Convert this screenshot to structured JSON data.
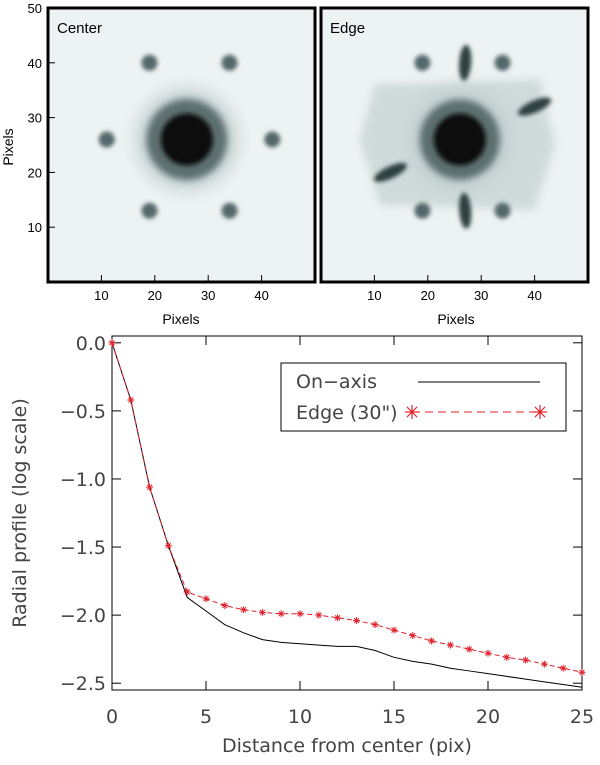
{
  "chart_data": [
    {
      "type": "heatmap",
      "title": "Center",
      "xlabel": "Pixels",
      "ylabel": "Pixels",
      "xlim": [
        0,
        50
      ],
      "ylim": [
        0,
        50
      ],
      "x_ticks": [
        "10",
        "20",
        "30",
        "40"
      ],
      "y_ticks": [
        "10",
        "20",
        "30",
        "40",
        "50"
      ],
      "colormap": "inverted grayscale",
      "features": [
        {
          "kind": "core",
          "x": 26,
          "y": 26
        },
        {
          "kind": "spot",
          "x": 19,
          "y": 40
        },
        {
          "kind": "spot",
          "x": 34,
          "y": 40
        },
        {
          "kind": "spot",
          "x": 11,
          "y": 26
        },
        {
          "kind": "spot",
          "x": 42,
          "y": 26
        },
        {
          "kind": "spot",
          "x": 19,
          "y": 13
        },
        {
          "kind": "spot",
          "x": 34,
          "y": 13
        }
      ]
    },
    {
      "type": "heatmap",
      "title": "Edge",
      "xlabel": "Pixels",
      "ylabel": "",
      "xlim": [
        0,
        50
      ],
      "ylim": [
        0,
        50
      ],
      "x_ticks": [
        "10",
        "20",
        "30",
        "40"
      ],
      "y_ticks": [],
      "colormap": "inverted grayscale",
      "features": [
        {
          "kind": "core",
          "x": 26,
          "y": 26
        },
        {
          "kind": "spot",
          "x": 19,
          "y": 40
        },
        {
          "kind": "spot",
          "x": 34,
          "y": 40
        },
        {
          "kind": "streak",
          "x": 27,
          "y": 40
        },
        {
          "kind": "streak",
          "x": 27,
          "y": 13
        },
        {
          "kind": "streak",
          "x": 40,
          "y": 32
        },
        {
          "kind": "streak",
          "x": 13,
          "y": 20
        },
        {
          "kind": "spot",
          "x": 19,
          "y": 13
        },
        {
          "kind": "spot",
          "x": 34,
          "y": 13
        }
      ]
    },
    {
      "type": "line",
      "title": "",
      "xlabel": "Distance from center (pix)",
      "ylabel": "Radial profile (log scale)",
      "xlim": [
        0,
        25
      ],
      "ylim": [
        -2.55,
        0.05
      ],
      "x_ticks": [
        "0",
        "5",
        "10",
        "15",
        "20",
        "25"
      ],
      "y_ticks": [
        "0.0",
        "−0.5",
        "−1.0",
        "−1.5",
        "−2.0",
        "−2.5"
      ],
      "legend_position": "top-right",
      "series": [
        {
          "name": "On−axis",
          "color": "#000000",
          "style": "solid",
          "x": [
            0,
            1,
            2,
            3,
            4,
            5,
            6,
            7,
            8,
            9,
            10,
            11,
            12,
            13,
            14,
            15,
            16,
            17,
            18,
            19,
            20,
            21,
            22,
            23,
            24,
            25
          ],
          "values": [
            0.0,
            -0.42,
            -1.06,
            -1.49,
            -1.87,
            -1.97,
            -2.07,
            -2.13,
            -2.18,
            -2.2,
            -2.21,
            -2.22,
            -2.23,
            -2.23,
            -2.26,
            -2.31,
            -2.34,
            -2.36,
            -2.39,
            -2.41,
            -2.43,
            -2.45,
            -2.47,
            -2.49,
            -2.51,
            -2.53
          ]
        },
        {
          "name": "Edge (30\")",
          "color": "#e0202a",
          "style": "dashed",
          "marker": "asterisk",
          "x": [
            0,
            1,
            2,
            3,
            4,
            5,
            6,
            7,
            8,
            9,
            10,
            11,
            12,
            13,
            14,
            15,
            16,
            17,
            18,
            19,
            20,
            21,
            22,
            23,
            24,
            25
          ],
          "values": [
            0.0,
            -0.42,
            -1.06,
            -1.49,
            -1.83,
            -1.88,
            -1.93,
            -1.96,
            -1.98,
            -1.99,
            -1.99,
            -2.0,
            -2.02,
            -2.04,
            -2.07,
            -2.11,
            -2.15,
            -2.19,
            -2.22,
            -2.25,
            -2.28,
            -2.31,
            -2.33,
            -2.36,
            -2.39,
            -2.42
          ]
        }
      ]
    }
  ]
}
